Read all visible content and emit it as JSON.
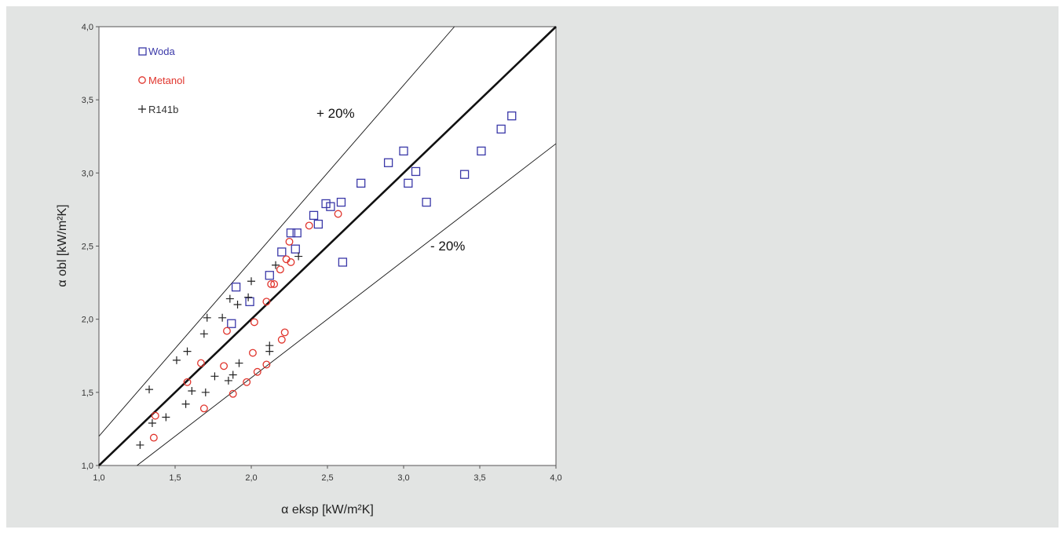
{
  "chart_data": {
    "type": "scatter",
    "xlabel": "α eksp [kW/m²K]",
    "ylabel": "α obl [kW/m²K]",
    "xlim": [
      1.0,
      4.0
    ],
    "ylim": [
      1.0,
      4.0
    ],
    "x_ticks": [
      "1,0",
      "1,5",
      "2,0",
      "2,5",
      "3,0",
      "3,5",
      "4,0"
    ],
    "y_ticks": [
      "1,0",
      "1,5",
      "2,0",
      "2,5",
      "3,0",
      "3,5",
      "4,0"
    ],
    "grid": false,
    "legend_position": "top-left",
    "reference_lines": [
      {
        "slope": 1.0
      },
      {
        "slope": 1.2,
        "label": "+ 20%"
      },
      {
        "slope": 0.8,
        "label": "- 20%"
      }
    ],
    "series": [
      {
        "name": "Woda",
        "marker": "square",
        "color": "#3a38a8",
        "points": [
          [
            1.87,
            1.97
          ],
          [
            1.9,
            2.22
          ],
          [
            1.99,
            2.12
          ],
          [
            2.12,
            2.3
          ],
          [
            2.2,
            2.46
          ],
          [
            2.26,
            2.59
          ],
          [
            2.29,
            2.48
          ],
          [
            2.3,
            2.59
          ],
          [
            2.41,
            2.71
          ],
          [
            2.44,
            2.65
          ],
          [
            2.49,
            2.79
          ],
          [
            2.52,
            2.77
          ],
          [
            2.59,
            2.8
          ],
          [
            2.6,
            2.39
          ],
          [
            2.72,
            2.93
          ],
          [
            2.9,
            3.07
          ],
          [
            3.0,
            3.15
          ],
          [
            3.03,
            2.93
          ],
          [
            3.08,
            3.01
          ],
          [
            3.15,
            2.8
          ],
          [
            3.4,
            2.99
          ],
          [
            3.51,
            3.15
          ],
          [
            3.64,
            3.3
          ],
          [
            3.71,
            3.39
          ]
        ]
      },
      {
        "name": "Metanol",
        "marker": "circle",
        "color": "#e0342c",
        "points": [
          [
            1.36,
            1.19
          ],
          [
            1.37,
            1.34
          ],
          [
            1.58,
            1.57
          ],
          [
            1.67,
            1.7
          ],
          [
            1.69,
            1.39
          ],
          [
            1.82,
            1.68
          ],
          [
            1.84,
            1.92
          ],
          [
            1.88,
            1.49
          ],
          [
            1.97,
            1.57
          ],
          [
            2.01,
            1.77
          ],
          [
            2.02,
            1.98
          ],
          [
            2.04,
            1.64
          ],
          [
            2.1,
            1.69
          ],
          [
            2.1,
            2.12
          ],
          [
            2.13,
            2.24
          ],
          [
            2.15,
            2.24
          ],
          [
            2.19,
            2.34
          ],
          [
            2.2,
            1.86
          ],
          [
            2.22,
            1.91
          ],
          [
            2.23,
            2.41
          ],
          [
            2.25,
            2.53
          ],
          [
            2.26,
            2.39
          ],
          [
            2.38,
            2.64
          ],
          [
            2.57,
            2.72
          ]
        ]
      },
      {
        "name": "R141b",
        "marker": "plus",
        "color": "#222222",
        "points": [
          [
            1.27,
            1.14
          ],
          [
            1.33,
            1.52
          ],
          [
            1.35,
            1.29
          ],
          [
            1.44,
            1.33
          ],
          [
            1.51,
            1.72
          ],
          [
            1.57,
            1.42
          ],
          [
            1.58,
            1.78
          ],
          [
            1.61,
            1.51
          ],
          [
            1.69,
            1.9
          ],
          [
            1.7,
            1.5
          ],
          [
            1.71,
            2.01
          ],
          [
            1.76,
            1.61
          ],
          [
            1.81,
            2.01
          ],
          [
            1.85,
            1.58
          ],
          [
            1.86,
            2.14
          ],
          [
            1.88,
            1.62
          ],
          [
            1.91,
            2.1
          ],
          [
            1.92,
            1.7
          ],
          [
            1.98,
            2.15
          ],
          [
            2.0,
            2.26
          ],
          [
            2.12,
            1.78
          ],
          [
            2.12,
            1.82
          ],
          [
            2.16,
            2.37
          ],
          [
            2.31,
            2.43
          ]
        ]
      }
    ]
  }
}
